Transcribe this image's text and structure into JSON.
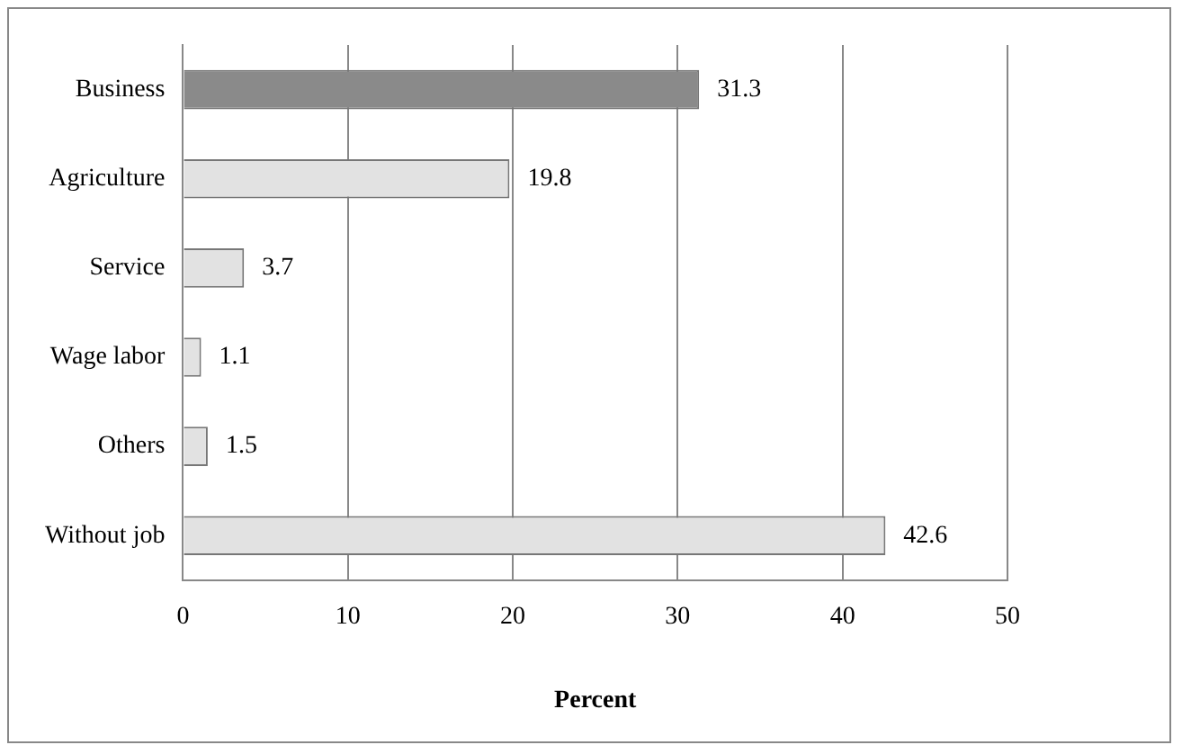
{
  "chart_data": {
    "type": "bar",
    "orientation": "horizontal",
    "xlabel": "Percent",
    "categories": [
      "Business",
      "Agriculture",
      "Service",
      "Wage labor",
      "Others",
      "Without job"
    ],
    "values": [
      31.3,
      19.8,
      3.7,
      1.1,
      1.5,
      42.6
    ],
    "colors": [
      "#8a8a8a",
      "#e2e2e2",
      "#e2e2e2",
      "#e2e2e2",
      "#e2e2e2",
      "#e2e2e2"
    ],
    "xlim": [
      0,
      50
    ],
    "xticks": [
      0,
      10,
      20,
      30,
      40,
      50
    ],
    "grid": "x",
    "data_labels": true,
    "legend": false
  }
}
